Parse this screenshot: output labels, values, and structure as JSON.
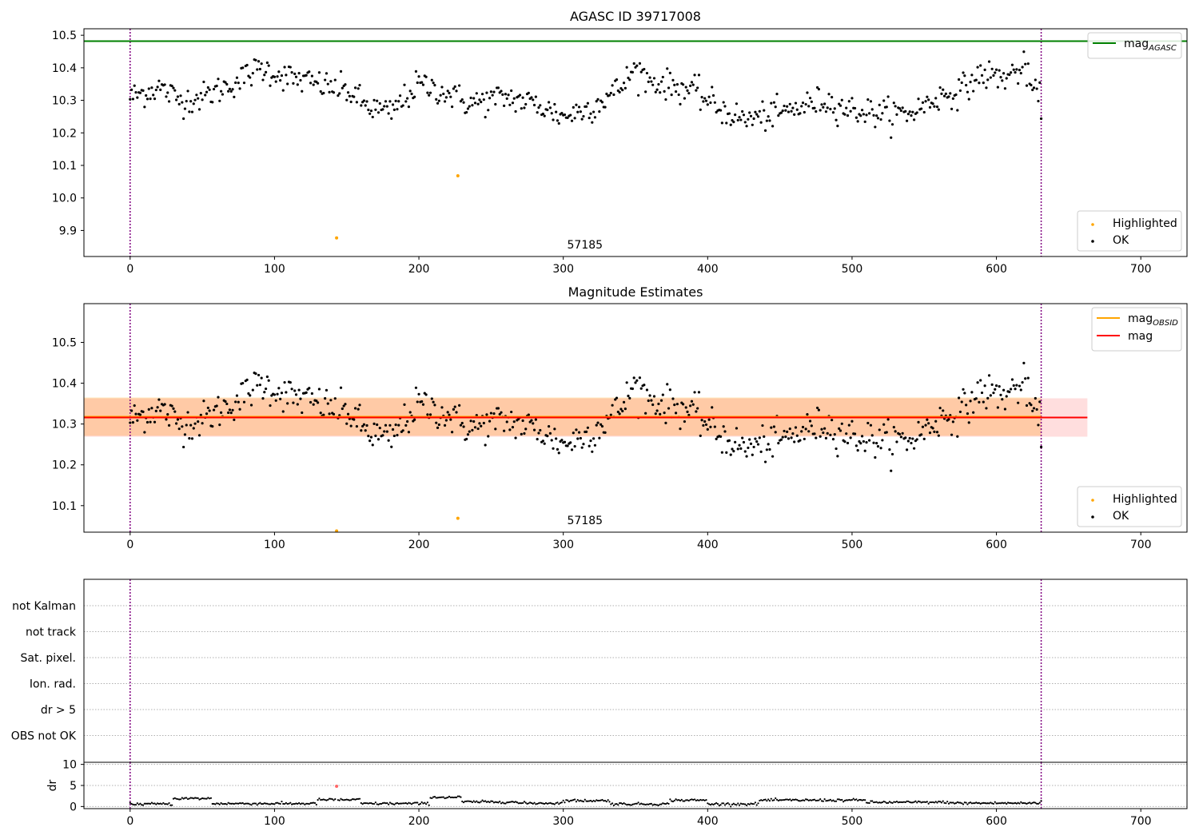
{
  "chart_data": [
    {
      "type": "scatter",
      "title": "AGASC ID 39717008",
      "xlim": [
        -32,
        732
      ],
      "ylim": [
        9.82,
        10.52
      ],
      "xticks": [
        "0",
        "100",
        "200",
        "300",
        "400",
        "500",
        "600",
        "700"
      ],
      "yticks": [
        "9.9",
        "10.0",
        "10.1",
        "10.2",
        "10.3",
        "10.4",
        "10.5"
      ],
      "annotation": "57185",
      "obs_bounds": [
        0,
        631
      ],
      "hlines": [
        {
          "name": "mag",
          "sub": "AGASC",
          "y": 10.482,
          "color": "#008000"
        }
      ],
      "points": {
        "x_start": 0,
        "x_end": 631,
        "count": 632
      },
      "highlighted": [
        {
          "x": 143,
          "y": 9.877
        },
        {
          "x": 227,
          "y": 10.068
        }
      ],
      "legend": {
        "position": "bottom-right",
        "entries": [
          {
            "label": "Highlighted",
            "color": "#ffa500"
          },
          {
            "label": "OK",
            "color": "#000000"
          }
        ]
      },
      "line_legend": {
        "position": "top-right"
      }
    },
    {
      "type": "scatter",
      "title": "Magnitude Estimates",
      "xlim": [
        -32,
        732
      ],
      "ylim": [
        10.035,
        10.595
      ],
      "xticks": [
        "0",
        "100",
        "200",
        "300",
        "400",
        "500",
        "600",
        "700"
      ],
      "yticks": [
        "10.1",
        "10.2",
        "10.3",
        "10.4",
        "10.5"
      ],
      "annotation": "57185",
      "obs_bounds": [
        0,
        631
      ],
      "hlines": [
        {
          "name": "mag",
          "sub": "OBSID",
          "y": 10.318,
          "color": "#ffa500",
          "x0": -32,
          "x1": 631,
          "band": [
            10.271,
            10.365
          ]
        },
        {
          "name": "mag",
          "sub": "",
          "y": 10.316,
          "color": "#ff0000",
          "x0": -32,
          "x1": 663,
          "band": [
            10.269,
            10.363
          ]
        }
      ],
      "highlighted": [
        {
          "x": 143,
          "y": 10.038
        },
        {
          "x": 227,
          "y": 10.069
        }
      ],
      "legend": {
        "position": "bottom-right",
        "entries": [
          {
            "label": "Highlighted",
            "color": "#ffa500"
          },
          {
            "label": "OK",
            "color": "#000000"
          }
        ]
      },
      "line_legend": {
        "position": "top-right"
      }
    },
    {
      "type": "scatter",
      "title": "",
      "xlim": [
        -32,
        732
      ],
      "categories": [
        "not Kalman",
        "not track",
        "Sat. pixel.",
        "Ion. rad.",
        "dr > 5",
        "OBS not OK"
      ],
      "obs_bounds": [
        0,
        631
      ],
      "flag_points": []
    },
    {
      "type": "scatter",
      "title": "",
      "xlim": [
        -32,
        732
      ],
      "ylim": [
        -0.5,
        10.5
      ],
      "ylabel": "dr",
      "xticks": [
        "0",
        "100",
        "200",
        "300",
        "400",
        "500",
        "600",
        "700"
      ],
      "yticks": [
        "0",
        "5",
        "10"
      ],
      "obs_bounds": [
        0,
        631
      ],
      "highlighted": [
        {
          "x": 143,
          "y": 4.8,
          "color": "#ff6666"
        }
      ]
    }
  ]
}
